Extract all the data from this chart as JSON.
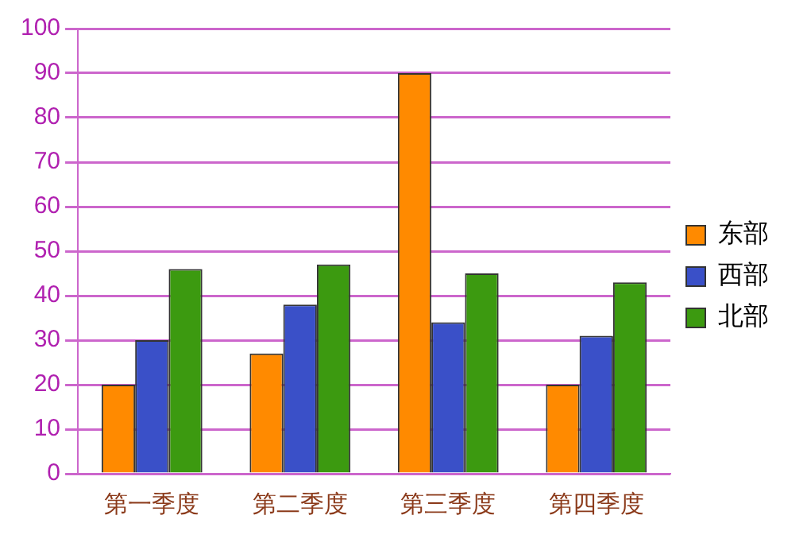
{
  "chart_data": {
    "type": "bar",
    "categories": [
      "第一季度",
      "第二季度",
      "第三季度",
      "第四季度"
    ],
    "series": [
      {
        "name": "东部",
        "color": "#ff8a00",
        "values": [
          20,
          27,
          90,
          20
        ]
      },
      {
        "name": "西部",
        "color": "#3a50c8",
        "values": [
          30,
          38,
          34,
          31
        ]
      },
      {
        "name": "北部",
        "color": "#3c9a10",
        "values": [
          46,
          47,
          45,
          43
        ]
      }
    ],
    "ylim": [
      0,
      100
    ],
    "yticks": [
      0,
      10,
      20,
      30,
      40,
      50,
      60,
      70,
      80,
      90,
      100
    ],
    "grid": "y",
    "legend": "right"
  }
}
